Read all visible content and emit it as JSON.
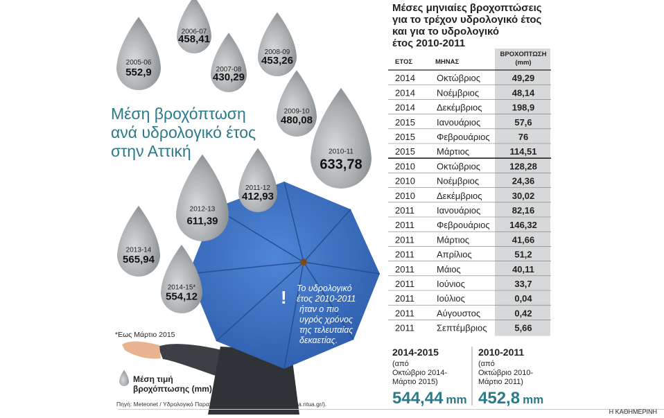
{
  "left": {
    "title": [
      "Μέση βροχόπτωση",
      "ανά υδρολογικό έτος",
      "στην Αττική"
    ],
    "drops": [
      {
        "label": "2005-06",
        "value": "552,9"
      },
      {
        "label": "2006-07",
        "value": "458,41"
      },
      {
        "label": "2007-08",
        "value": "430,29"
      },
      {
        "label": "2008-09",
        "value": "453,26"
      },
      {
        "label": "2009-10",
        "value": "480,08"
      },
      {
        "label": "2010-11",
        "value": "633,78"
      },
      {
        "label": "2011-12",
        "value": "412,93"
      },
      {
        "label": "2012-13",
        "value": "611,39"
      },
      {
        "label": "2013-14",
        "value": "565,94"
      },
      {
        "label": "2014-15*",
        "value": "554,12"
      }
    ],
    "note": [
      "Το υδρολογικό",
      "έτος 2010-2011",
      "ήταν ο πιο",
      "υγρός χρόνος",
      "της τελευταίας",
      "δεκαετίας."
    ],
    "footnote": "*Εως Μάρτιο 2015",
    "legend": [
      "Μέση τιμή",
      "βροχόπτωσης (mm)"
    ],
    "source": "Πηγή: Meteonet / Υδρολογικό Παρατηρητήριο Αθηνών (ΗΟΑ, http://hoa.ntua.gr/)."
  },
  "right": {
    "title": [
      "Μέσες μηνιαίες βροχοπτώσεις",
      "για το τρέχον υδρολογικό έτος",
      "και για το υδρολογικό",
      "έτος 2010-2011"
    ],
    "table": {
      "headers": [
        "ΕΤΟΣ",
        "ΜΗΝΑΣ",
        [
          "ΒΡΟΧΟΠΤΩΣΗ",
          "(mm)"
        ]
      ],
      "rows": [
        [
          "2014",
          "Οκτώβριος",
          "49,29"
        ],
        [
          "2014",
          "Νοέμβριος",
          "48,14"
        ],
        [
          "2014",
          "Δεκέμβριος",
          "198,9"
        ],
        [
          "2015",
          "Ιανουάριος",
          "57,6"
        ],
        [
          "2015",
          "Φεβρουάριος",
          "76"
        ],
        [
          "2015",
          "Μάρτιος",
          "114,51"
        ],
        [
          "2010",
          "Οκτώβριος",
          "128,28"
        ],
        [
          "2010",
          "Νοέμβριος",
          "24,36"
        ],
        [
          "2010",
          "Δεκέμβριος",
          "30,02"
        ],
        [
          "2011",
          "Ιανουάριος",
          "82,16"
        ],
        [
          "2011",
          "Φεβρουάριος",
          "146,32"
        ],
        [
          "2011",
          "Μάρτιος",
          "41,66"
        ],
        [
          "2011",
          "Απρίλιος",
          "51,2"
        ],
        [
          "2011",
          "Μάιος",
          "40,11"
        ],
        [
          "2011",
          "Ιούνιος",
          "33,7"
        ],
        [
          "2011",
          "Ιούλιος",
          "0,04"
        ],
        [
          "2011",
          "Αύγουστος",
          "0,42"
        ],
        [
          "2011",
          "Σεπτέμβριος",
          "5,66"
        ]
      ]
    },
    "summaries": [
      {
        "period": "2014-2015",
        "detail": [
          "(από",
          "Οκτώβριο 2014-",
          "Μάρτιο 2015)"
        ],
        "value": "544,44",
        "unit": "mm"
      },
      {
        "period": "2010-2011",
        "detail": [
          "(από",
          "Οκτώβριο 2010-",
          "Μάρτιο 2011)"
        ],
        "value": "452,8",
        "unit": "mm"
      }
    ]
  },
  "brand": "Η ΚΑΘΗΜΕΡΙΝΗ"
}
